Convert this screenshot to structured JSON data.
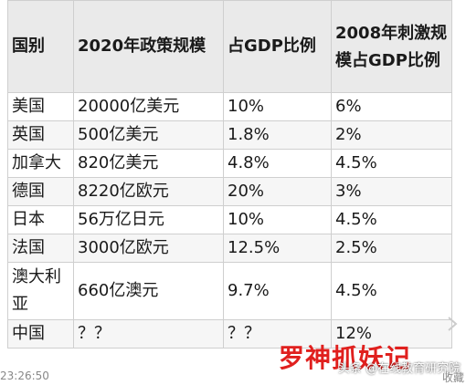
{
  "table": {
    "headers": [
      "国别",
      "2020年政策规模",
      "占GDP比例",
      "2008年刺激规模占GDP比例"
    ],
    "rows": [
      [
        "美国",
        "20000亿美元",
        "10%",
        "6%"
      ],
      [
        "英国",
        "500亿美元",
        "1.8%",
        "2%"
      ],
      [
        "加拿大",
        "820亿美元",
        "4.8%",
        "4.5%"
      ],
      [
        "德国",
        "8220亿欧元",
        "20%",
        "3%"
      ],
      [
        "日本",
        "56万亿日元",
        "10%",
        "4.5%"
      ],
      [
        "法国",
        "3000亿欧元",
        "12.5%",
        "2.5%"
      ],
      [
        "澳大利亚",
        "660亿澳元",
        "9.7%",
        "4.5%"
      ],
      [
        "中国",
        "？？",
        "？？",
        "12%"
      ]
    ]
  },
  "overlay": {
    "caption": "罗神抓妖记",
    "watermark": "头条 @在线教育研究院"
  },
  "footer": {
    "timestamp": "23:26:50",
    "collect": "收藏"
  }
}
